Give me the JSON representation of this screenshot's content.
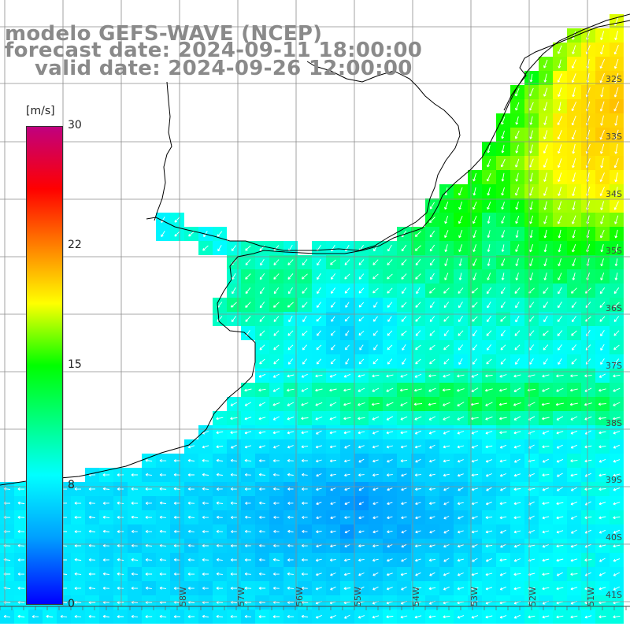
{
  "title": {
    "line1": "modelo GEFS-WAVE (NCEP)",
    "line2": "forecast date: 2024-09-11 18:00:00",
    "line3": "valid date: 2024-09-26 12:00:00"
  },
  "colorbar": {
    "unit": "[m/s]",
    "ticks": [
      "30",
      "22",
      "15",
      "8",
      "0"
    ],
    "min": 0,
    "max": 30,
    "colors": [
      "#0000ff",
      "#00a0ff",
      "#00ffff",
      "#00ff00",
      "#ffff00",
      "#ff8000",
      "#ff0000",
      "#c0007f"
    ]
  },
  "lat_labels": [
    "32S",
    "33S",
    "34S",
    "35S",
    "36S",
    "37S",
    "38S",
    "39S",
    "40S",
    "41S"
  ],
  "lon_labels": [
    "58W",
    "57W",
    "56W",
    "55W",
    "54W",
    "53W",
    "52W",
    "51W"
  ],
  "colors": {
    "land": "#ffffff",
    "grid": "#8c8c8c",
    "coast": "#000000",
    "title": "#8a8a8a"
  }
}
